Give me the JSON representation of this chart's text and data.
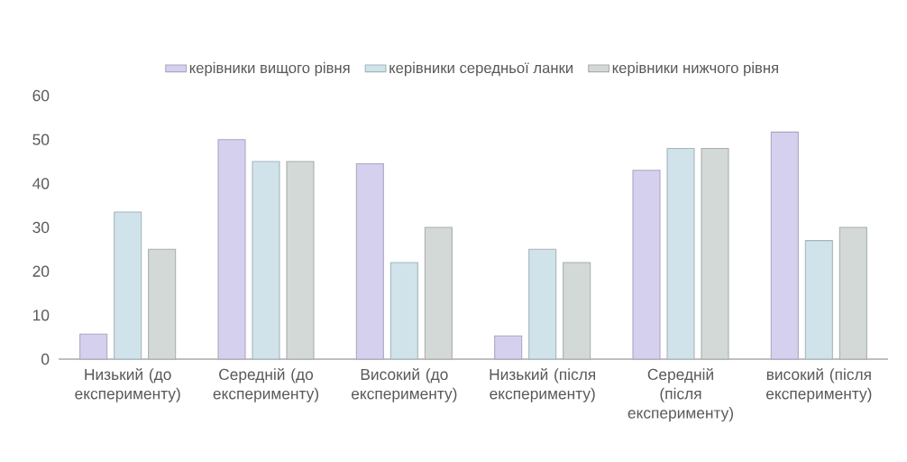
{
  "chart_data": {
    "type": "bar",
    "categories": [
      "Низький (до експерименту)",
      "Середній (до експерименту)",
      "Високий (до експерименту)",
      "Низький (після експерименту)",
      "Середній (після експерименту)",
      "високий (після експерименту)"
    ],
    "series": [
      {
        "name": "керівники вищого рівня",
        "color": "#d6d0ef",
        "values": [
          5.7,
          50,
          44.5,
          5.3,
          43,
          51.7
        ]
      },
      {
        "name": "керівники середньої ланки",
        "color": "#d0e2ea",
        "values": [
          33.5,
          45,
          22,
          25,
          48,
          27
        ]
      },
      {
        "name": "керівники нижчого рівня",
        "color": "#d2d9d7",
        "values": [
          25,
          45,
          30,
          22,
          48,
          30
        ]
      }
    ],
    "ylim": [
      0,
      60
    ],
    "yticks": [
      0,
      10,
      20,
      30,
      40,
      50,
      60
    ],
    "legend": "top"
  }
}
